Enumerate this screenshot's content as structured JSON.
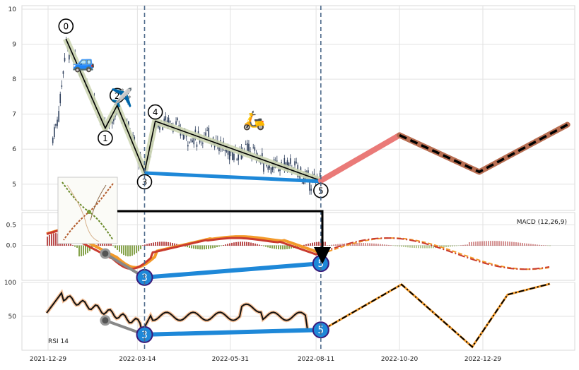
{
  "chart_data": [
    {
      "type": "line",
      "panel": "price",
      "title": "",
      "yticks": [
        "10",
        "9",
        "8",
        "7",
        "6",
        "5"
      ],
      "ylim": [
        4.25,
        10.1
      ],
      "grid": true,
      "wave_points": [
        {
          "label": "0",
          "date": "2022-01-13",
          "value": 9.15
        },
        {
          "label": "1",
          "date": "2022-02-15",
          "value": 6.6
        },
        {
          "label": "2",
          "date": "2022-02-25",
          "value": 7.25
        },
        {
          "label": "3",
          "date": "2022-03-20",
          "value": 5.35
        },
        {
          "label": "4",
          "date": "2022-03-29",
          "value": 6.8
        },
        {
          "label": "5",
          "date": "2022-08-15",
          "value": 5.1
        }
      ],
      "divergence_line": [
        {
          "date": "2022-03-20",
          "value": 5.32
        },
        {
          "date": "2022-08-15",
          "value": 5.08
        }
      ],
      "forecast": [
        {
          "date": "2022-08-15",
          "value": 5.1
        },
        {
          "date": "2022-10-20",
          "value": 6.4
        },
        {
          "date": "2022-12-26",
          "value": 5.35
        },
        {
          "date": "2023-03-10",
          "value": 6.7
        }
      ],
      "emoji": {
        "car": "🚙",
        "plane": "✈️",
        "scooter": "🛵"
      },
      "emoji_positions": [
        {
          "icon": "car",
          "date": "2022-01-28",
          "value": 8.3
        },
        {
          "icon": "plane",
          "date": "2022-03-01",
          "value": 7.3
        },
        {
          "icon": "scooter",
          "date": "2022-06-20",
          "value": 6.65
        }
      ],
      "vlines": [
        "2022-03-20",
        "2022-08-15"
      ]
    },
    {
      "type": "line",
      "panel": "macd",
      "title": "MACD (12,26,9)",
      "yticks": [
        "0.5",
        "0.0"
      ],
      "ylim": [
        -0.85,
        0.8
      ],
      "grid": true,
      "divergence_line": [
        {
          "label": "3",
          "date": "2022-03-20",
          "value": -0.78
        },
        {
          "label": "5",
          "date": "2022-08-15",
          "value": -0.44
        }
      ],
      "gray_marker": {
        "date": "2022-02-15",
        "value": -0.2
      }
    },
    {
      "type": "line",
      "panel": "rsi",
      "title": "RSI 14",
      "yticks": [
        "100",
        "50"
      ],
      "ylim": [
        0,
        100
      ],
      "grid": true,
      "divergence_line": [
        {
          "label": "3",
          "date": "2022-03-20",
          "value": 23
        },
        {
          "label": "5",
          "date": "2022-08-15",
          "value": 30
        }
      ],
      "gray_marker": {
        "date": "2022-02-15",
        "value": 44
      }
    }
  ],
  "xticks": [
    "2021-12-29",
    "2022-03-14",
    "2022-05-31",
    "2022-08-11",
    "2022-10-20",
    "2022-12-29"
  ],
  "colors": {
    "candle": "#2e3f5c",
    "wave_fill": "#cdd6b4",
    "wave_line": "#000000",
    "blue": "#1e88d8",
    "forecast_red": "#ea7a78",
    "forecast_brown": "#b86e52",
    "macd_orange": "#f39a2a",
    "macd_red": "#c93a2e",
    "hist_pos": "#b23a3a",
    "hist_neg": "#7a9a3a",
    "dashed_vline": "#4d6a8a"
  }
}
